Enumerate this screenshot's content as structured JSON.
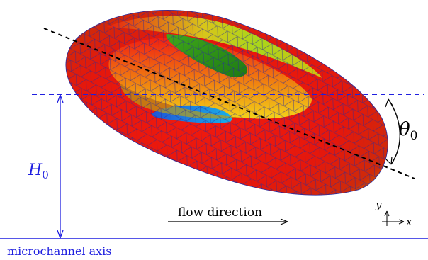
{
  "labels": {
    "height": "H",
    "height_sub": "0",
    "angle": "θ",
    "angle_sub": "0",
    "flow": "flow direction",
    "axis": "microchannel axis",
    "axis_y": "y",
    "axis_x": "x"
  },
  "colors": {
    "guide_blue": "#1f1fe0",
    "cell_red": "#e8160e",
    "mesh": "#3a2a8a",
    "dashed_black": "#000000"
  }
}
